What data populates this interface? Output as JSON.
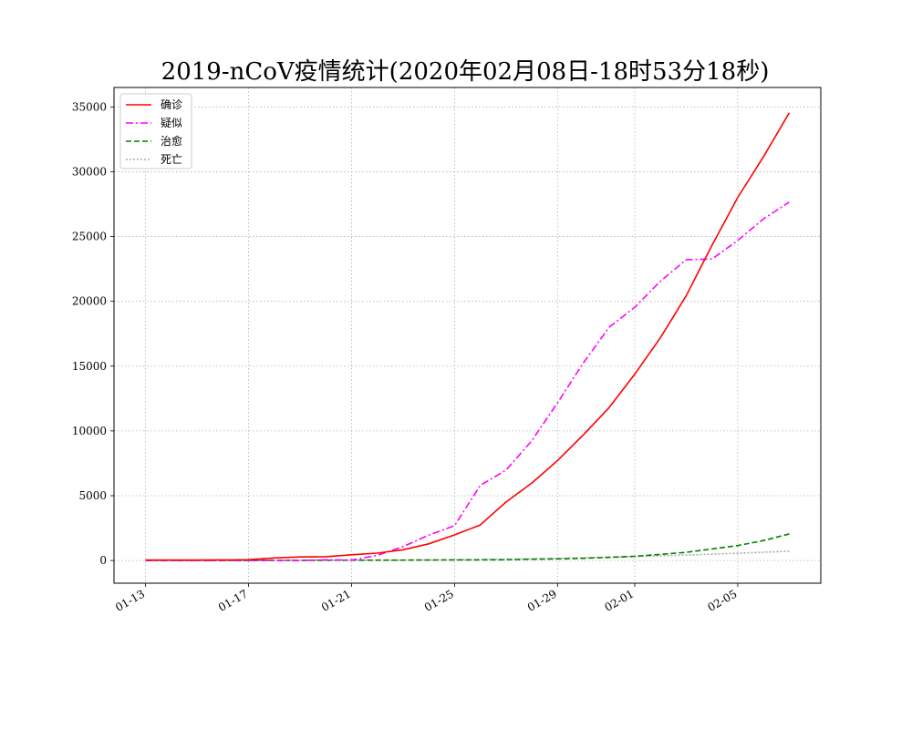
{
  "chart_data": {
    "type": "line",
    "title": "2019-nCoV疫情统计(2020年02月08日-18时53分18秒)",
    "xlabel": "",
    "ylabel": "",
    "x": [
      "01-13",
      "01-14",
      "01-15",
      "01-16",
      "01-17",
      "01-18",
      "01-19",
      "01-20",
      "01-21",
      "01-22",
      "01-23",
      "01-24",
      "01-25",
      "01-26",
      "01-27",
      "01-28",
      "01-29",
      "01-30",
      "01-31",
      "02-01",
      "02-02",
      "02-03",
      "02-04",
      "02-05",
      "02-06",
      "02-07"
    ],
    "x_tick_labels": [
      "01-13",
      "01-17",
      "01-21",
      "01-25",
      "01-29",
      "02-01",
      "02-05"
    ],
    "ylim": [
      -1750,
      36500
    ],
    "y_ticks": [
      0,
      5000,
      10000,
      15000,
      20000,
      25000,
      30000,
      35000
    ],
    "grid": true,
    "legend_position": "upper-left",
    "series": [
      {
        "name": "确诊",
        "color": "#ff0000",
        "style": "solid",
        "values": [
          41,
          41,
          41,
          45,
          62,
          198,
          275,
          291,
          440,
          571,
          830,
          1287,
          1975,
          2744,
          4515,
          5974,
          7711,
          9692,
          11791,
          14380,
          17205,
          20438,
          24324,
          28018,
          31161,
          34546
        ]
      },
      {
        "name": "疑似",
        "color": "#ff00ff",
        "style": "dashdot",
        "values": [
          0,
          0,
          0,
          0,
          0,
          0,
          0,
          54,
          37,
          393,
          1072,
          1965,
          2684,
          5794,
          6973,
          9239,
          12167,
          15238,
          17988,
          19544,
          21558,
          23214,
          23260,
          24702,
          26359,
          27657
        ]
      },
      {
        "name": "治愈",
        "color": "#008000",
        "style": "dashed",
        "values": [
          7,
          7,
          12,
          12,
          12,
          17,
          17,
          25,
          25,
          28,
          34,
          38,
          49,
          51,
          60,
          103,
          124,
          171,
          243,
          328,
          475,
          632,
          892,
          1153,
          1540,
          2050
        ]
      },
      {
        "name": "死亡",
        "color": "#aaaaaa",
        "style": "dotted",
        "values": [
          1,
          1,
          2,
          2,
          2,
          3,
          4,
          6,
          9,
          17,
          25,
          41,
          56,
          80,
          106,
          132,
          170,
          213,
          259,
          304,
          361,
          425,
          490,
          563,
          636,
          722
        ]
      }
    ]
  }
}
